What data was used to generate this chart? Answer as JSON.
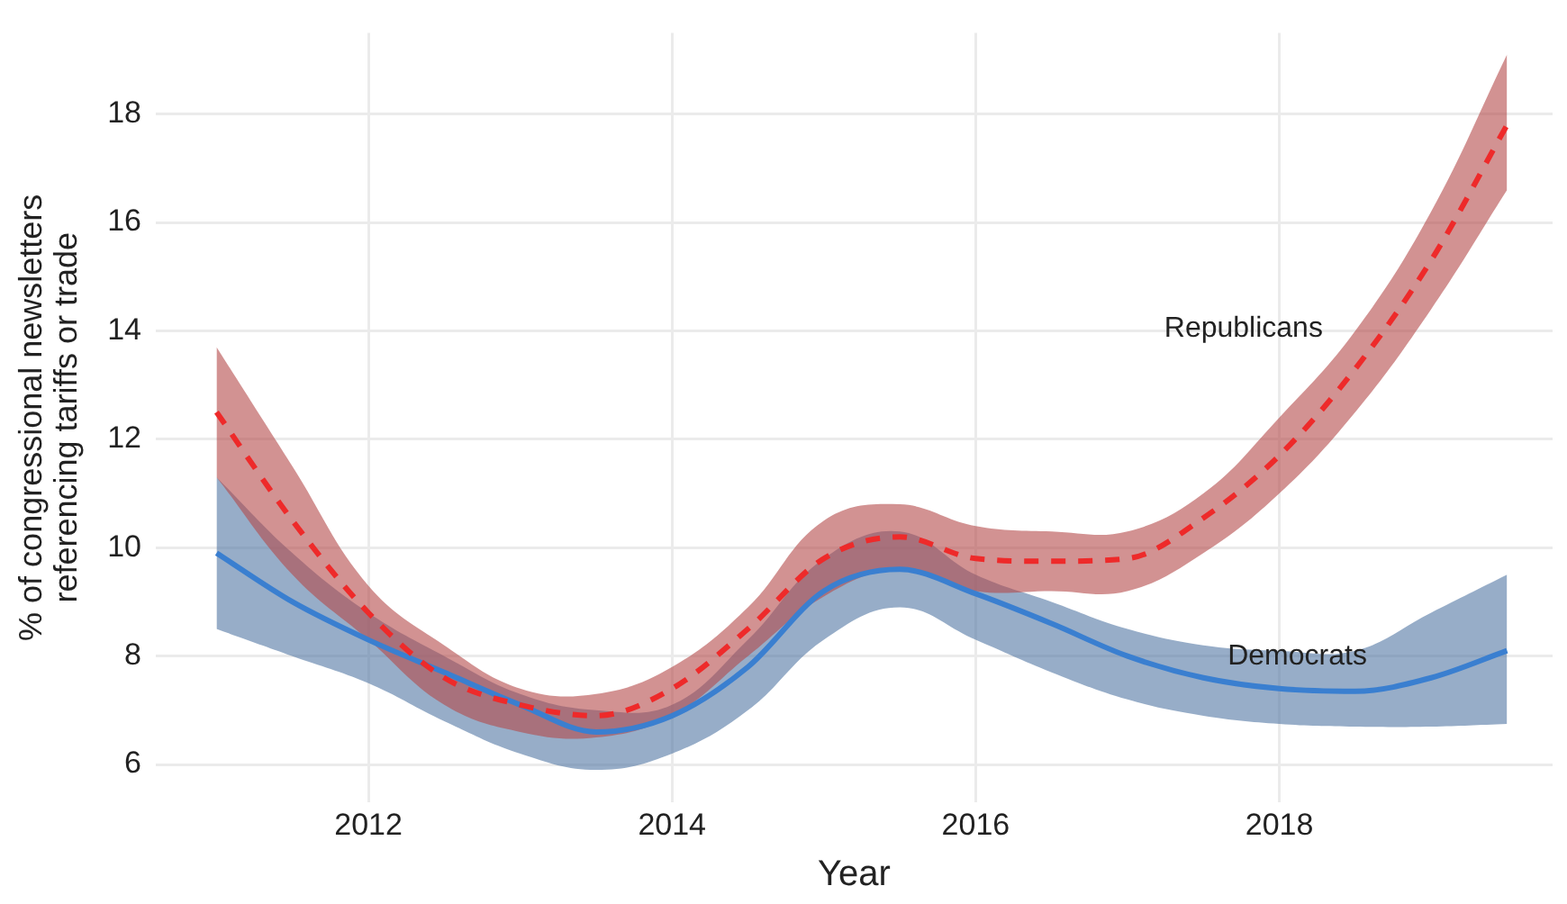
{
  "chart_data": {
    "type": "line",
    "xlabel": "Year",
    "ylabel": "% of congressional newsletters\nreferencing tariffs or trade",
    "x": [
      2011,
      2011.5,
      2012,
      2012.5,
      2013,
      2013.5,
      2014,
      2014.5,
      2015,
      2015.5,
      2016,
      2016.5,
      2017,
      2017.5,
      2018,
      2018.5,
      2019,
      2019.5
    ],
    "xlim": [
      2010.6,
      2019.8
    ],
    "xticks": [
      2012,
      2014,
      2016,
      2018
    ],
    "ylim": [
      5.3,
      19.5
    ],
    "yticks": [
      6,
      8,
      10,
      12,
      14,
      16,
      18
    ],
    "grid": true,
    "legend": false,
    "marker": "none",
    "series": [
      {
        "name": "Republicans",
        "color": "#ee2a2a",
        "line_style": "dashed",
        "values": [
          12.5,
          10.5,
          8.8,
          7.6,
          7.1,
          6.9,
          7.4,
          8.5,
          9.8,
          10.2,
          9.8,
          9.75,
          9.8,
          10.55,
          11.7,
          13.3,
          15.3,
          17.8
        ],
        "upper": [
          13.7,
          11.5,
          9.3,
          8.2,
          7.4,
          7.3,
          7.8,
          8.9,
          10.5,
          10.8,
          10.4,
          10.3,
          10.3,
          11.0,
          12.4,
          14.0,
          16.2,
          19.1
        ],
        "lower": [
          11.3,
          9.5,
          8.3,
          7.1,
          6.6,
          6.5,
          6.9,
          8.0,
          9.1,
          9.6,
          9.2,
          9.2,
          9.2,
          9.9,
          11.0,
          12.5,
          14.4,
          16.6
        ]
      },
      {
        "name": "Democrats",
        "color": "#3a7fd0",
        "line_style": "solid",
        "values": [
          9.9,
          9.0,
          8.3,
          7.7,
          7.1,
          6.6,
          6.9,
          7.8,
          9.2,
          9.6,
          9.15,
          8.6,
          8.0,
          7.6,
          7.4,
          7.35,
          7.6,
          8.1
        ],
        "upper": [
          11.3,
          9.9,
          8.8,
          8.0,
          7.3,
          7.0,
          7.1,
          8.3,
          9.8,
          10.3,
          9.5,
          9.0,
          8.5,
          8.2,
          8.1,
          8.1,
          8.8,
          9.5
        ],
        "lower": [
          8.5,
          8.0,
          7.5,
          6.8,
          6.2,
          5.9,
          6.2,
          7.0,
          8.3,
          8.9,
          8.3,
          7.7,
          7.2,
          6.9,
          6.75,
          6.7,
          6.7,
          6.75
        ]
      }
    ]
  }
}
